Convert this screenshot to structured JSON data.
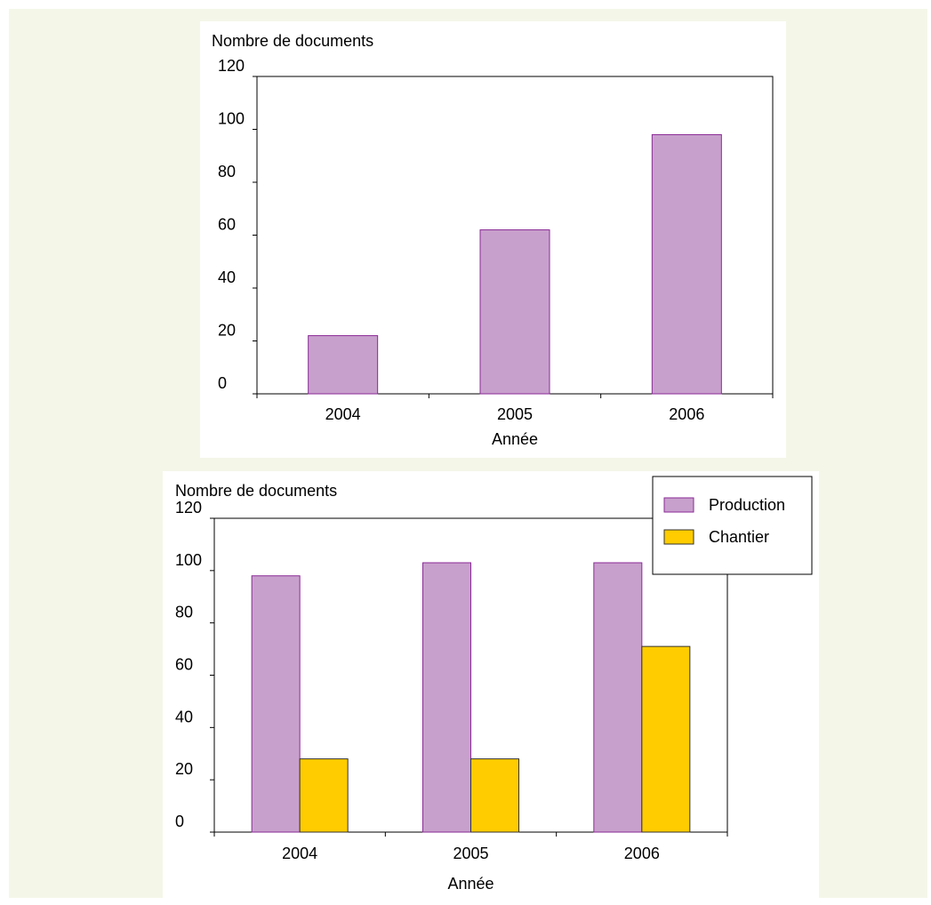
{
  "colors": {
    "background": "#f4f7e8",
    "production": "#c8a0cc",
    "production_edge": "#8a2a96",
    "chantier": "#ffcc00",
    "chantier_edge": "#333333",
    "axis": "#000000"
  },
  "chart_data": [
    {
      "type": "bar",
      "ylabel": "Nombre de documents",
      "xlabel": "Année",
      "categories": [
        "2004",
        "2005",
        "2006"
      ],
      "yticks": [
        "0",
        "20",
        "40",
        "60",
        "80",
        "100",
        "120"
      ],
      "ylim": [
        0,
        120
      ],
      "grid": false,
      "series": [
        {
          "values": [
            22,
            62,
            98
          ]
        }
      ]
    },
    {
      "type": "bar",
      "ylabel": "Nombre de documents",
      "xlabel": "Année",
      "categories": [
        "2004",
        "2005",
        "2006"
      ],
      "yticks": [
        "0",
        "20",
        "40",
        "60",
        "80",
        "100",
        "120"
      ],
      "ylim": [
        0,
        120
      ],
      "grid": false,
      "legend_position": "top-right",
      "series": [
        {
          "name": "Production",
          "values": [
            98,
            103,
            103
          ]
        },
        {
          "name": "Chantier",
          "values": [
            28,
            28,
            71
          ]
        }
      ]
    }
  ]
}
